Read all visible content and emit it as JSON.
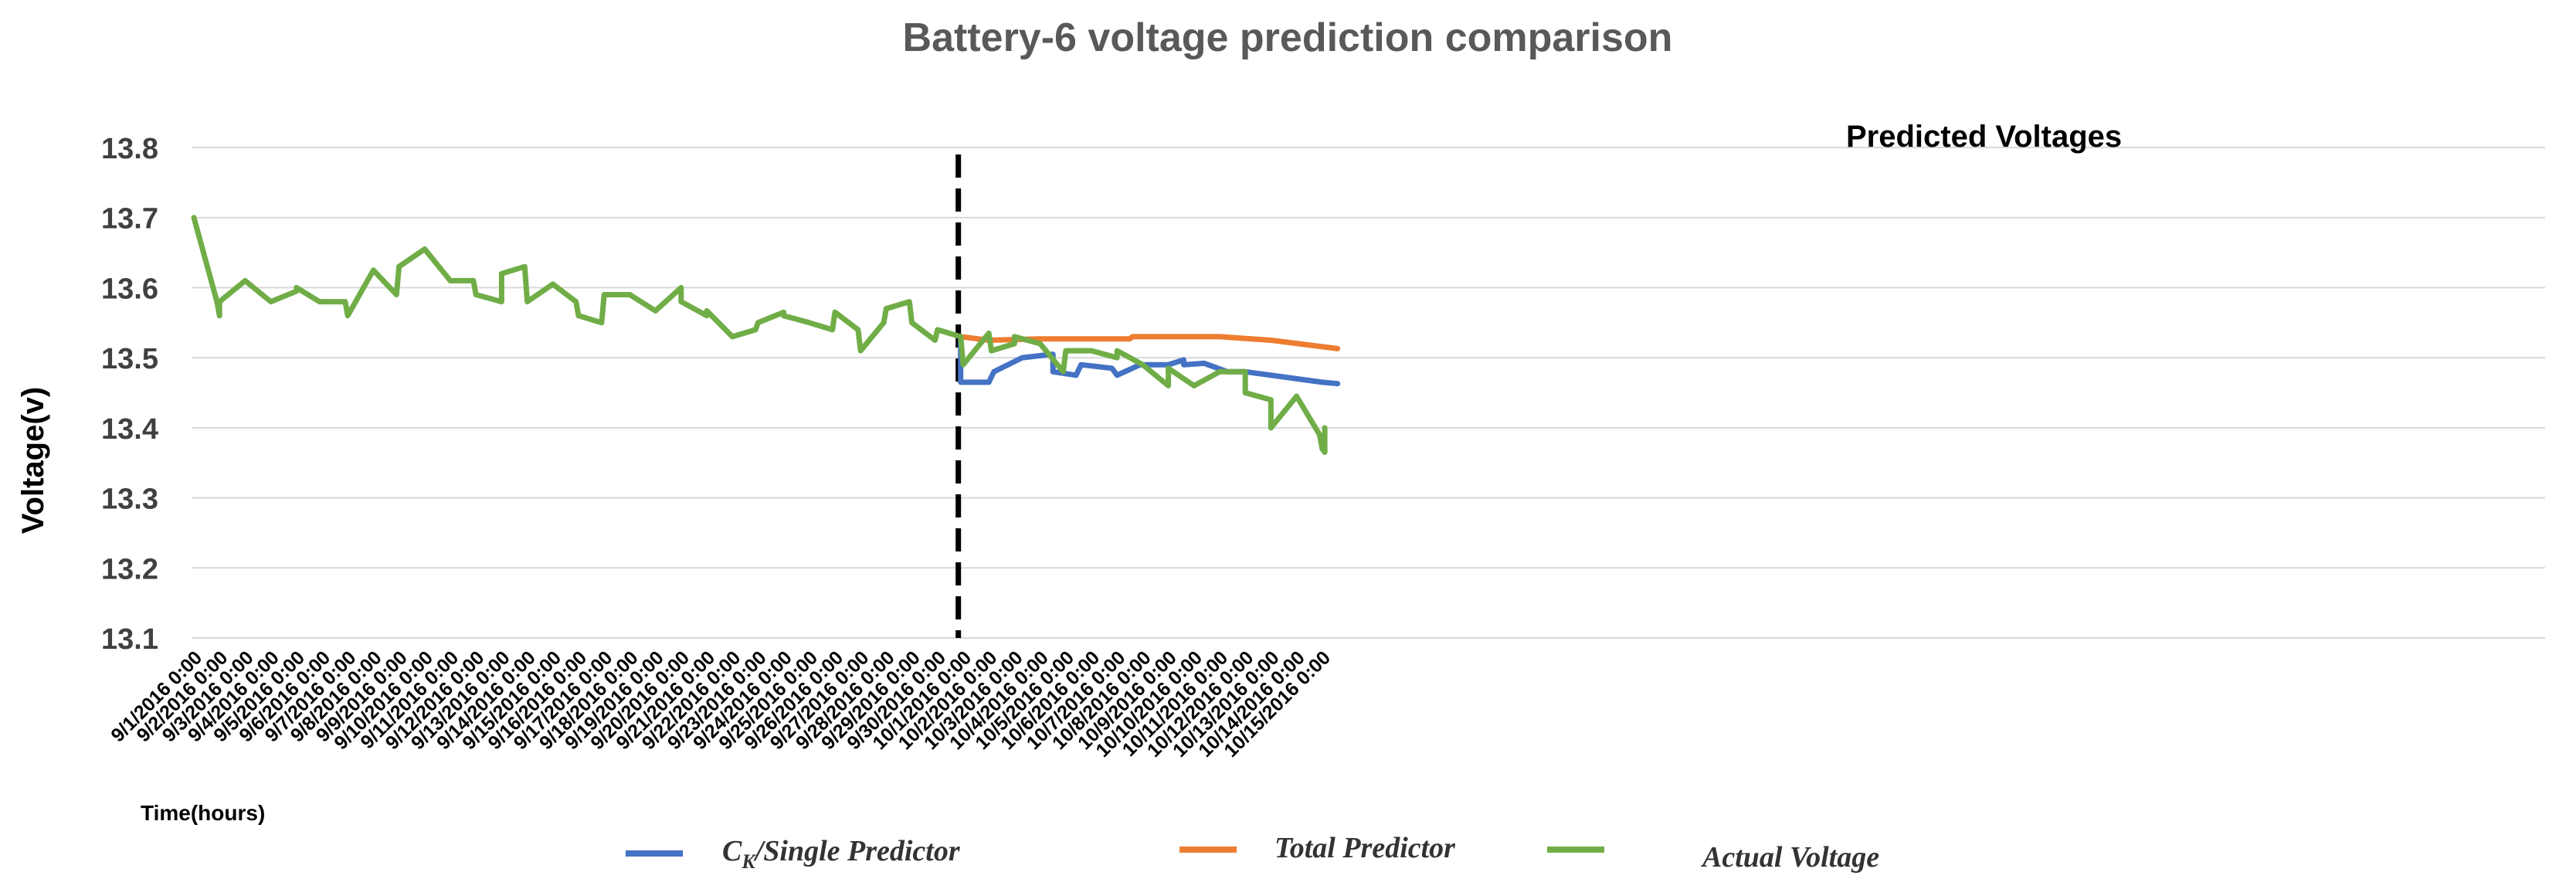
{
  "chart_data": {
    "type": "line",
    "title": "Battery-6 voltage prediction comparison",
    "xlabel": "Time(hours)",
    "ylabel": "Voltage(v)",
    "ylim": [
      13.1,
      13.8
    ],
    "yticks": [
      "13.1",
      "13.2",
      "13.3",
      "13.4",
      "13.5",
      "13.6",
      "13.7",
      "13.8"
    ],
    "grid": true,
    "categories": [
      "9/1/2016 0:00",
      "9/2/2016 0:00",
      "9/3/2016 0:00",
      "9/4/2016 0:00",
      "9/5/2016 0:00",
      "9/6/2016 0:00",
      "9/7/2016 0:00",
      "9/8/2016 0:00",
      "9/9/2016 0:00",
      "9/10/2016 0:00",
      "9/11/2016 0:00",
      "9/12/2016 0:00",
      "9/13/2016 0:00",
      "9/14/2016 0:00",
      "9/15/2016 0:00",
      "9/16/2016 0:00",
      "9/17/2016 0:00",
      "9/18/2016 0:00",
      "9/19/2016 0:00",
      "9/20/2016 0:00",
      "9/21/2016 0:00",
      "9/22/2016 0:00",
      "9/23/2016 0:00",
      "9/24/2016 0:00",
      "9/25/2016 0:00",
      "9/26/2016 0:00",
      "9/27/2016 0:00",
      "9/28/2016 0:00",
      "9/29/2016 0:00",
      "9/30/2016 0:00",
      "10/1/2016 0:00",
      "10/2/2016 0:00",
      "10/3/2016 0:00",
      "10/4/2016 0:00",
      "10/5/2016 0:00",
      "10/6/2016 0:00",
      "10/7/2016 0:00",
      "10/8/2016 0:00",
      "10/9/2016 0:00",
      "10/10/2016 0:00",
      "10/11/2016 0:00",
      "10/12/2016 0:00",
      "10/13/2016 0:00",
      "10/14/2016 0:00",
      "10/15/2016 0:00"
    ],
    "annotation": {
      "text": "Predicted Voltages",
      "divider_at_day": 29.9
    },
    "legend": {
      "placement": "bottom"
    },
    "series": [
      {
        "name": "Ck/Single Predictor",
        "name_main": "C",
        "name_sub": "K",
        "name_rest": "/Single Predictor",
        "color": "#4472C4",
        "points": [
          [
            29.9,
            13.53
          ],
          [
            29.9,
            13.465
          ],
          [
            31.0,
            13.465
          ],
          [
            31.2,
            13.48
          ],
          [
            32.3,
            13.5
          ],
          [
            33.5,
            13.505
          ],
          [
            33.5,
            13.48
          ],
          [
            34.4,
            13.475
          ],
          [
            34.6,
            13.49
          ],
          [
            35.8,
            13.485
          ],
          [
            36.0,
            13.475
          ],
          [
            36.9,
            13.49
          ],
          [
            38.0,
            13.49
          ],
          [
            38.6,
            13.497
          ],
          [
            38.6,
            13.49
          ],
          [
            39.4,
            13.492
          ],
          [
            40.3,
            13.48
          ],
          [
            41.0,
            13.48
          ],
          [
            42.0,
            13.475
          ],
          [
            43.0,
            13.47
          ],
          [
            44.0,
            13.465
          ],
          [
            44.6,
            13.463
          ]
        ]
      },
      {
        "name": "Total Predictor",
        "color": "#ED7D31",
        "points": [
          [
            29.9,
            13.53
          ],
          [
            31.0,
            13.525
          ],
          [
            33.0,
            13.527
          ],
          [
            35.0,
            13.527
          ],
          [
            36.5,
            13.527
          ],
          [
            36.6,
            13.53
          ],
          [
            38.0,
            13.53
          ],
          [
            40.0,
            13.53
          ],
          [
            42.0,
            13.525
          ],
          [
            44.6,
            13.513
          ]
        ]
      },
      {
        "name": "Actual Voltage",
        "color": "#70AD47",
        "points": [
          [
            0,
            13.7
          ],
          [
            0.9,
            13.58
          ],
          [
            1.0,
            13.56
          ],
          [
            1.0,
            13.58
          ],
          [
            2.0,
            13.61
          ],
          [
            3.0,
            13.58
          ],
          [
            4.0,
            13.595
          ],
          [
            4.0,
            13.6
          ],
          [
            4.9,
            13.58
          ],
          [
            5.0,
            13.58
          ],
          [
            5.9,
            13.58
          ],
          [
            6.0,
            13.56
          ],
          [
            7.0,
            13.625
          ],
          [
            7.9,
            13.59
          ],
          [
            8.0,
            13.63
          ],
          [
            9.0,
            13.655
          ],
          [
            10.0,
            13.61
          ],
          [
            10.9,
            13.61
          ],
          [
            11.0,
            13.59
          ],
          [
            12.0,
            13.58
          ],
          [
            12.0,
            13.62
          ],
          [
            12.9,
            13.63
          ],
          [
            13.0,
            13.58
          ],
          [
            14.0,
            13.605
          ],
          [
            14.9,
            13.58
          ],
          [
            15.0,
            13.56
          ],
          [
            15.9,
            13.55
          ],
          [
            16.0,
            13.59
          ],
          [
            17.0,
            13.59
          ],
          [
            18.0,
            13.567
          ],
          [
            19.0,
            13.6
          ],
          [
            19.0,
            13.58
          ],
          [
            20.0,
            13.56
          ],
          [
            20.0,
            13.567
          ],
          [
            21.0,
            13.53
          ],
          [
            21.9,
            13.54
          ],
          [
            22.0,
            13.55
          ],
          [
            23.0,
            13.565
          ],
          [
            23.0,
            13.56
          ],
          [
            24.0,
            13.55
          ],
          [
            24.9,
            13.54
          ],
          [
            25.0,
            13.565
          ],
          [
            25.9,
            13.54
          ],
          [
            26.0,
            13.51
          ],
          [
            26.9,
            13.55
          ],
          [
            27.0,
            13.57
          ],
          [
            27.9,
            13.58
          ],
          [
            28.0,
            13.55
          ],
          [
            28.9,
            13.525
          ],
          [
            29.0,
            13.54
          ],
          [
            29.9,
            13.53
          ],
          [
            30.0,
            13.49
          ],
          [
            31.0,
            13.535
          ],
          [
            31.1,
            13.51
          ],
          [
            32.0,
            13.52
          ],
          [
            32.0,
            13.53
          ],
          [
            33.0,
            13.52
          ],
          [
            33.9,
            13.48
          ],
          [
            34.0,
            13.51
          ],
          [
            35.0,
            13.51
          ],
          [
            36.0,
            13.5
          ],
          [
            36.0,
            13.51
          ],
          [
            37.0,
            13.49
          ],
          [
            38.0,
            13.46
          ],
          [
            38.0,
            13.485
          ],
          [
            39.0,
            13.46
          ],
          [
            40.0,
            13.48
          ],
          [
            41.0,
            13.48
          ],
          [
            41.0,
            13.45
          ],
          [
            42.0,
            13.44
          ],
          [
            42.0,
            13.4
          ],
          [
            43.0,
            13.445
          ],
          [
            43.9,
            13.39
          ],
          [
            44.0,
            13.37
          ],
          [
            44.1,
            13.365
          ],
          [
            44.1,
            13.4
          ]
        ]
      }
    ]
  }
}
